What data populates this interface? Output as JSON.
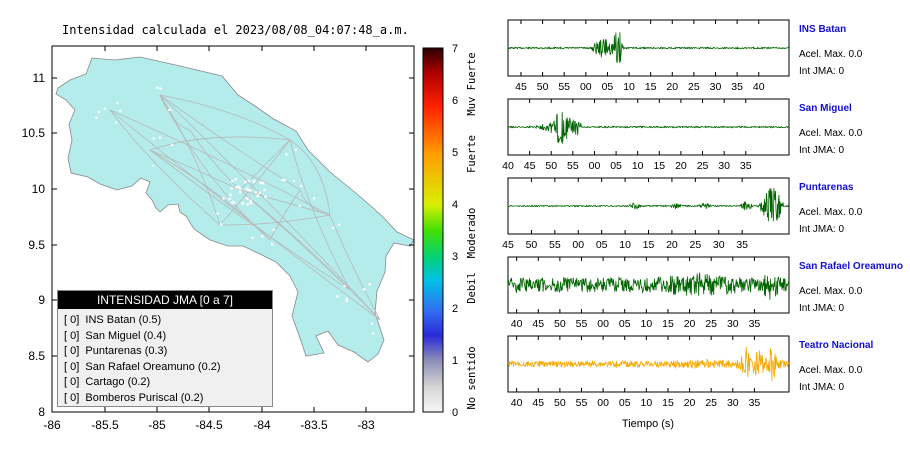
{
  "map": {
    "title": "Intensidad calculada el 2023/08/08_04:07:48_a.m.",
    "yticks": [
      "11",
      "10.5",
      "10",
      "9.5",
      "9",
      "8.5",
      "8"
    ],
    "xticks": [
      "-86",
      "-85.5",
      "-85",
      "-84.5",
      "-84",
      "-83.5",
      "-83"
    ],
    "legend": {
      "header": "INTENSIDAD JMA [0 a 7]",
      "items": [
        "[ 0]  INS Batan (0.5)",
        "[ 0]  San Miguel (0.4)",
        "[ 0]  Puntarenas (0.3)",
        "[ 0]  San Rafael Oreamuno (0.2)",
        "[ 0]  Cartago (0.2)",
        "[ 0]  Bomberos Puriscal (0.2)"
      ]
    },
    "colors": {
      "land": "#b4ecec",
      "roads": "#b8b8b8"
    }
  },
  "colorbar": {
    "ticks": [
      "7",
      "6",
      "5",
      "4",
      "3",
      "2",
      "1",
      "0"
    ],
    "labels": [
      "Muy Fuerte",
      "Fuerte",
      "Moderado",
      "Debil",
      "No sentido"
    ]
  },
  "chart_data": {
    "type": "line",
    "xlabel": "Tiempo (s)",
    "traces": [
      {
        "station": "INS Batan",
        "acel": "Acel. Max. 0.0",
        "int": "Int JMA: 0",
        "ticks": [
          "45",
          "50",
          "55",
          "00",
          "05",
          "10",
          "15",
          "20",
          "25",
          "30",
          "35",
          "40"
        ],
        "x_start": 42,
        "x_end": 41,
        "color": "#006400",
        "bursts": [
          [
            30,
            38,
            0.45
          ],
          [
            37,
            41,
            0.9
          ]
        ],
        "noise": 0.03
      },
      {
        "station": "San Miguel",
        "acel": "Acel. Max. 0.0",
        "int": "Int JMA: 0",
        "ticks": [
          "40",
          "45",
          "50",
          "55",
          "00",
          "05",
          "10",
          "15",
          "20",
          "25",
          "30",
          "35"
        ],
        "x_start": 40,
        "x_end": 38,
        "color": "#006400",
        "bursts": [
          [
            10,
            19,
            0.18
          ],
          [
            15,
            23,
            0.8
          ],
          [
            22,
            26,
            0.5
          ]
        ],
        "noise": 0.03
      },
      {
        "station": "Puntarenas",
        "acel": "Acel. Max. 0.0",
        "int": "Int JMA: 0",
        "ticks": [
          "45",
          "50",
          "55",
          "00",
          "05",
          "10",
          "15",
          "20",
          "25",
          "30",
          "35"
        ],
        "x_start": 40,
        "x_end": 38,
        "color": "#006400",
        "bursts": [
          [
            43,
            47,
            0.2
          ],
          [
            58,
            62,
            0.14
          ],
          [
            68,
            72,
            0.16
          ],
          [
            82,
            87,
            0.2
          ],
          [
            89,
            95,
            0.22
          ],
          [
            90,
            98,
            0.85
          ]
        ],
        "noise": 0.025
      },
      {
        "station": "San Rafael Oreamuno",
        "acel": "Acel. Max. 0.0",
        "int": "Int JMA: 0",
        "ticks": [
          "40",
          "45",
          "50",
          "55",
          "00",
          "05",
          "10",
          "15",
          "20",
          "25",
          "30",
          "35"
        ],
        "x_start": 38,
        "x_end": 37,
        "color": "#006400",
        "bursts": [
          [
            38,
            99,
            0.5
          ],
          [
            90,
            97,
            0.8
          ]
        ],
        "noise": 0.3
      },
      {
        "station": "Teatro Nacional",
        "acel": "Acel. Max. 0.0",
        "int": "Int JMA: 0",
        "ticks": [
          "40",
          "45",
          "50",
          "55",
          "00",
          "05",
          "10",
          "15",
          "20",
          "25",
          "30",
          "35"
        ],
        "x_start": 37,
        "x_end": 37,
        "color": "#f5a800",
        "bursts": [
          [
            40,
            99,
            0.2
          ],
          [
            80,
            99,
            0.45
          ],
          [
            83,
            86,
            0.9
          ],
          [
            87,
            91,
            0.7
          ],
          [
            92,
            96,
            0.85
          ]
        ],
        "noise": 0.12
      }
    ]
  }
}
